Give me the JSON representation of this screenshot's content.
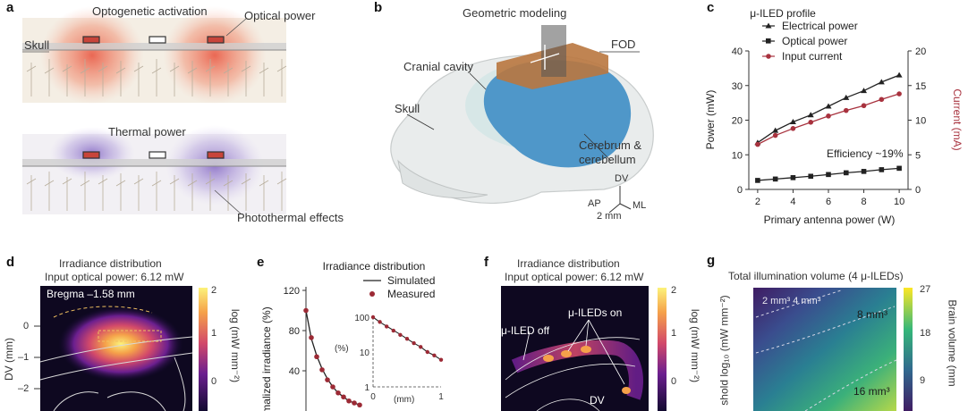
{
  "panels": {
    "a": {
      "letter": "a",
      "top_title": "Optogenetic activation",
      "top_label_right": "Optical power",
      "skull_label": "Skull",
      "thermal_label": "Thermal power",
      "photothermal_label": "Photothermal effects",
      "colors": {
        "optical": "#e8503a",
        "thermal": "#8b6fc4"
      }
    },
    "b": {
      "letter": "b",
      "title": "Geometric modeling",
      "fod": "FOD",
      "cranial": "Cranial cavity",
      "skull": "Skull",
      "cerebrum_1": "Cerebrum &",
      "cerebrum_2": "cerebellum",
      "axis_dv": "DV",
      "axis_ap": "AP",
      "axis_ml": "ML",
      "scale": "2 mm",
      "colors": {
        "brain": "#4f97c9",
        "fod": "#b9773f"
      }
    },
    "c": {
      "letter": "c",
      "title": "μ-ILED profile",
      "efficiency": "Efficiency ~19%",
      "yright_label": "Current (mA)"
    },
    "d": {
      "letter": "d",
      "title": "Irradiance distribution",
      "subtitle": "Input optical power: 6.12 mW",
      "bregma": "Bregma –1.58 mm",
      "ylabel": "DV (mm)",
      "yticks": [
        "0",
        "–1",
        "–2"
      ],
      "cbar_label": "log (mW mm⁻²)",
      "cbar_ticks": [
        "2",
        "1",
        "0"
      ]
    },
    "e": {
      "letter": "e",
      "title": "Irradiance distribution",
      "legend_sim": "Simulated",
      "legend_meas": "Measured",
      "ylabel": "malized irradiance (%)",
      "yticks": [
        "120",
        "80",
        "40"
      ],
      "inset_yticks": [
        "100",
        "10",
        "1"
      ],
      "inset_ylabel": "(%)",
      "inset_xlabel": "(mm)",
      "inset_xticks": [
        "0",
        "1"
      ]
    },
    "f": {
      "letter": "f",
      "title": "Irradiance distribution",
      "subtitle": "Input optical power: 6.12 mW",
      "off_label": "μ-ILED off",
      "on_label": "μ-ILEDs on",
      "dv": "DV",
      "cbar_label": "log (mW mm⁻²)",
      "cbar_ticks": [
        "2",
        "1",
        "0"
      ]
    },
    "g": {
      "letter": "g",
      "title": "Total illumination volume (4 μ-ILEDs)",
      "ylabel": "shold log₁₀ (mW mm⁻²)",
      "contour_1": "2 mm³ 4 mm³",
      "contour_2": "8 mm³",
      "contour_3": "16 mm³",
      "cbar_label": "Brain volume (mm",
      "cbar_ticks": [
        "27",
        "18",
        "9"
      ]
    }
  },
  "chart_data": [
    {
      "type": "line",
      "title": "μ-ILED profile",
      "xlabel": "Primary antenna power (W)",
      "ylabel": "Power (mW)",
      "ylabel_right": "Current (mA)",
      "x": [
        2,
        3,
        4,
        5,
        6,
        7,
        8,
        9,
        10
      ],
      "xlim": [
        1.5,
        10.5
      ],
      "ylim": [
        0,
        40
      ],
      "ylim_right": [
        0,
        20
      ],
      "xticks": [
        2,
        4,
        6,
        8,
        10
      ],
      "yticks": [
        0,
        10,
        20,
        30,
        40
      ],
      "yticks_right": [
        0,
        5,
        10,
        15,
        20
      ],
      "annotation": "Efficiency ~19%",
      "series": [
        {
          "name": "Electrical power",
          "axis": "left",
          "color": "#222222",
          "marker": "triangle",
          "values": [
            13.5,
            17,
            19.5,
            21.5,
            24,
            26.5,
            28.5,
            31,
            33
          ]
        },
        {
          "name": "Optical power",
          "axis": "left",
          "color": "#222222",
          "marker": "square",
          "values": [
            2.6,
            3.0,
            3.4,
            3.8,
            4.3,
            4.8,
            5.2,
            5.7,
            6.1
          ]
        },
        {
          "name": "Input current",
          "axis": "right",
          "color": "#a8323e",
          "marker": "circle",
          "values": [
            6.5,
            7.8,
            8.8,
            9.7,
            10.6,
            11.4,
            12.1,
            13.0,
            13.8
          ]
        }
      ]
    },
    {
      "type": "line",
      "title": "Irradiance distribution",
      "ylabel": "malized irradiance (%)",
      "yticks": [
        40,
        80,
        120
      ],
      "ylim": [
        0,
        120
      ],
      "series": [
        {
          "name": "Simulated",
          "color": "#222222",
          "style": "line",
          "x": [
            0,
            0.1,
            0.2,
            0.3,
            0.4,
            0.5,
            0.6,
            0.7,
            0.8,
            0.9,
            1.0
          ],
          "values": [
            100,
            72,
            55,
            42,
            32,
            24,
            18,
            14,
            10,
            8,
            6
          ]
        },
        {
          "name": "Measured",
          "color": "#9c2a35",
          "style": "marker",
          "x": [
            0,
            0.1,
            0.2,
            0.3,
            0.4,
            0.5,
            0.6,
            0.7,
            0.8,
            0.9,
            1.0
          ],
          "values": [
            100,
            73,
            54,
            41,
            31,
            24,
            18,
            14,
            10,
            8,
            6
          ]
        }
      ]
    }
  ]
}
